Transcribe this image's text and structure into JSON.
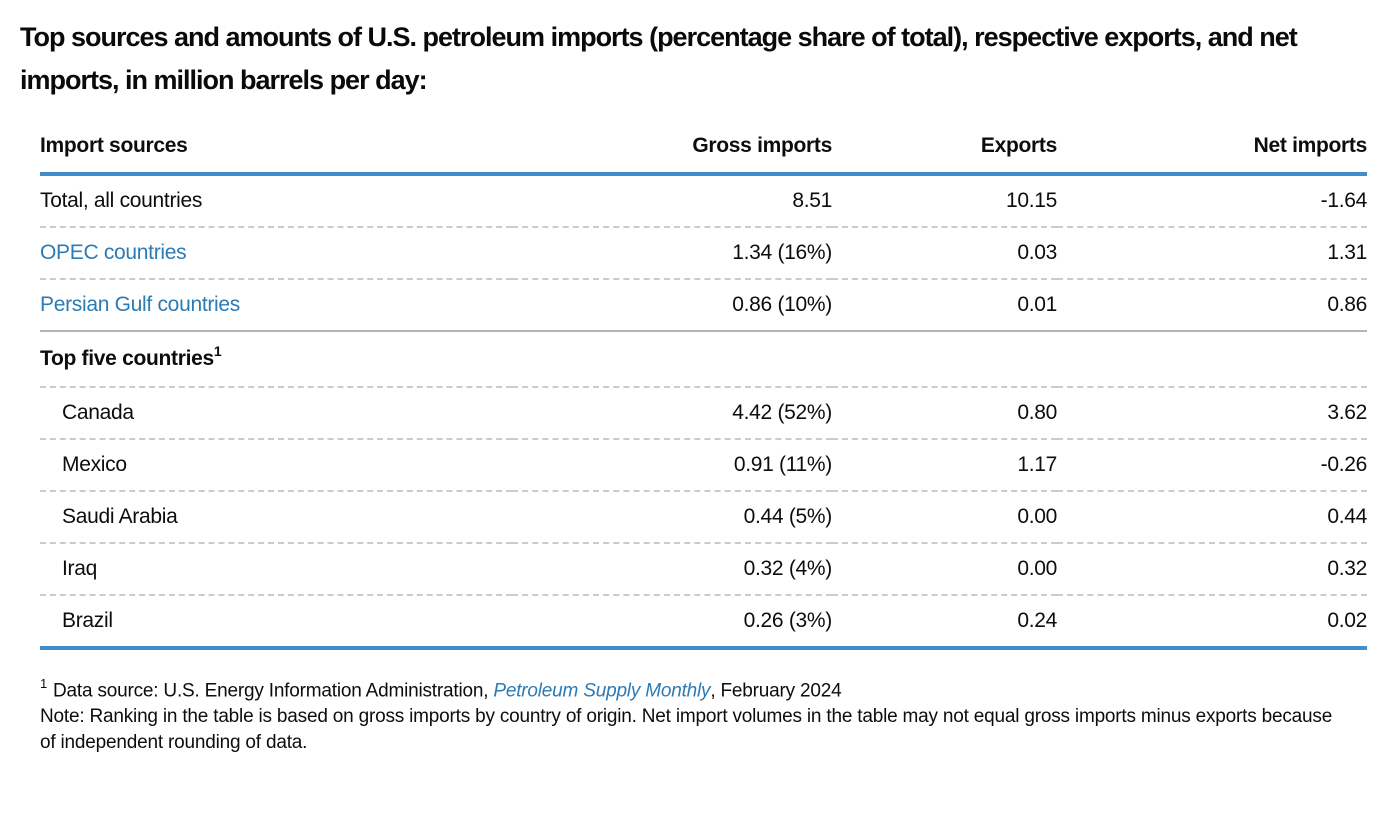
{
  "colors": {
    "rule_blue": "#3f8ecb",
    "link_blue": "#2c7bb4",
    "separator_grey": "#cbcbcb"
  },
  "title": "Top sources and amounts of U.S. petroleum imports (percentage share of total), respective exports, and net imports, in million barrels per day:",
  "table": {
    "headers": [
      "Import sources",
      "Gross imports",
      "Exports",
      "Net imports"
    ],
    "rows": [
      {
        "source": "Total, all countries",
        "gross": "8.51",
        "exports": "10.15",
        "net": "-1.64"
      },
      {
        "source": "OPEC countries",
        "gross": "1.34 (16%)",
        "exports": "0.03",
        "net": "1.31"
      },
      {
        "source": "Persian Gulf countries",
        "gross": "0.86 (10%)",
        "exports": "0.01",
        "net": "0.86"
      },
      {
        "source": "Canada",
        "gross": "4.42 (52%)",
        "exports": "0.80",
        "net": "3.62"
      },
      {
        "source": "Mexico",
        "gross": "0.91 (11%)",
        "exports": "1.17",
        "net": "-0.26"
      },
      {
        "source": "Saudi Arabia",
        "gross": "0.44 (5%)",
        "exports": "0.00",
        "net": "0.44"
      },
      {
        "source": "Iraq",
        "gross": "0.32 (4%)",
        "exports": "0.00",
        "net": "0.32"
      },
      {
        "source": "Brazil",
        "gross": "0.26 (3%)",
        "exports": "0.24",
        "net": "0.02"
      }
    ],
    "section": {
      "label": "Top five countries",
      "marker": "1"
    }
  },
  "footnote": {
    "marker": "1",
    "prefix": "Data source: U.S. Energy Information Administration, ",
    "link": "Petroleum Supply Monthly",
    "suffix": ", February 2024",
    "note": "Note: Ranking in the table is based on gross imports by country of origin. Net import volumes in the table may not equal gross imports minus exports because of independent rounding of data."
  },
  "chart_data": {
    "type": "table",
    "title": "Top sources and amounts of U.S. petroleum imports (percentage share of total), respective exports, and net imports, in million barrels per day",
    "units": "million barrels per day",
    "columns": [
      "Import sources",
      "Gross imports",
      "Percent share of total",
      "Exports",
      "Net imports"
    ],
    "rows": [
      {
        "source": "Total, all countries",
        "gross_imports": 8.51,
        "share_pct": null,
        "exports": 10.15,
        "net_imports": -1.64
      },
      {
        "source": "OPEC countries",
        "gross_imports": 1.34,
        "share_pct": 16,
        "exports": 0.03,
        "net_imports": 1.31
      },
      {
        "source": "Persian Gulf countries",
        "gross_imports": 0.86,
        "share_pct": 10,
        "exports": 0.01,
        "net_imports": 0.86
      },
      {
        "source": "Canada",
        "gross_imports": 4.42,
        "share_pct": 52,
        "exports": 0.8,
        "net_imports": 3.62
      },
      {
        "source": "Mexico",
        "gross_imports": 0.91,
        "share_pct": 11,
        "exports": 1.17,
        "net_imports": -0.26
      },
      {
        "source": "Saudi Arabia",
        "gross_imports": 0.44,
        "share_pct": 5,
        "exports": 0.0,
        "net_imports": 0.44
      },
      {
        "source": "Iraq",
        "gross_imports": 0.32,
        "share_pct": 4,
        "exports": 0.0,
        "net_imports": 0.32
      },
      {
        "source": "Brazil",
        "gross_imports": 0.26,
        "share_pct": 3,
        "exports": 0.24,
        "net_imports": 0.02
      }
    ],
    "section_note": "Top five countries ranked by gross imports",
    "footnote": "Data source: U.S. Energy Information Administration, Petroleum Supply Monthly, February 2024. Note: Ranking in the table is based on gross imports by country of origin. Net import volumes in the table may not equal gross imports minus exports because of independent rounding of data."
  }
}
